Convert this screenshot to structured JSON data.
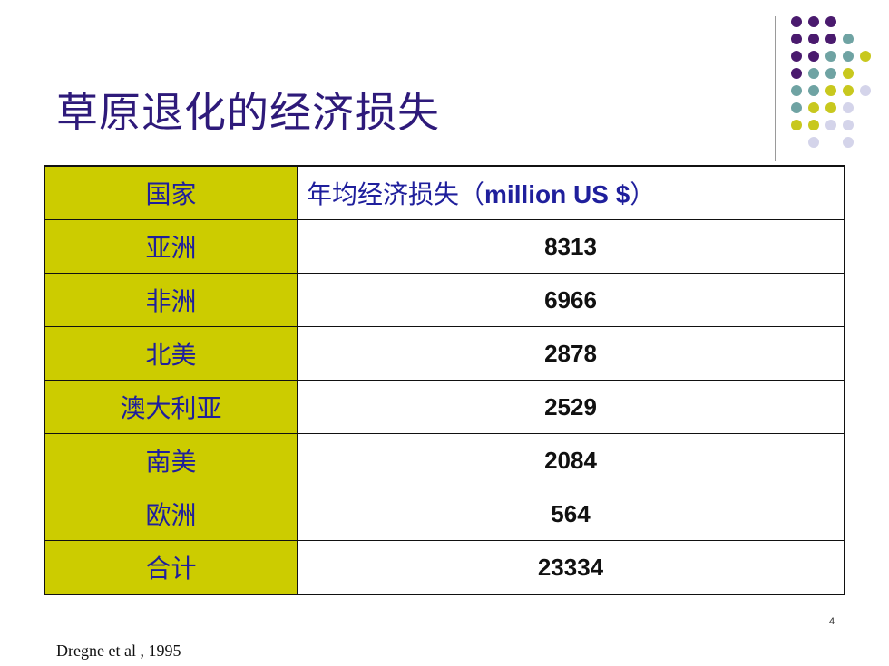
{
  "slide": {
    "title": "草原退化的经济损失",
    "page_number": "4",
    "source": "Dregne et al , 1995",
    "colors": {
      "title": "#2e1a7a",
      "label_fill": "#cccc00",
      "label_text": "#1f1f9c",
      "dot_purple": "#4a1a6e",
      "dot_teal": "#6fa3a3",
      "dot_yellow": "#c8c81e",
      "dot_lavender": "#d4d4ea"
    }
  },
  "table": {
    "header": {
      "col1": "国家",
      "col2_zh": "年均经济损失（",
      "col2_en": "million US $",
      "col2_close": "）"
    },
    "rows": [
      {
        "region": "亚洲",
        "value": "8313"
      },
      {
        "region": "非洲",
        "value": "6966"
      },
      {
        "region": "北美",
        "value": "2878"
      },
      {
        "region": "澳大利亚",
        "value": "2529"
      },
      {
        "region": "南美",
        "value": "2084"
      },
      {
        "region": "欧洲",
        "value": "564"
      },
      {
        "region": "合计",
        "value": "23334"
      }
    ]
  },
  "decoration": {
    "dot_grid": [
      [
        "purple",
        "purple",
        "purple",
        "none",
        "none"
      ],
      [
        "purple",
        "purple",
        "purple",
        "teal",
        "none"
      ],
      [
        "purple",
        "purple",
        "teal",
        "teal",
        "yellow"
      ],
      [
        "purple",
        "teal",
        "teal",
        "yellow",
        "none"
      ],
      [
        "teal",
        "teal",
        "yellow",
        "yellow",
        "lavender"
      ],
      [
        "teal",
        "yellow",
        "yellow",
        "lavender",
        "none"
      ],
      [
        "yellow",
        "yellow",
        "lavender",
        "lavender",
        "none"
      ],
      [
        "none",
        "lavender",
        "none",
        "lavender",
        "none"
      ]
    ]
  }
}
